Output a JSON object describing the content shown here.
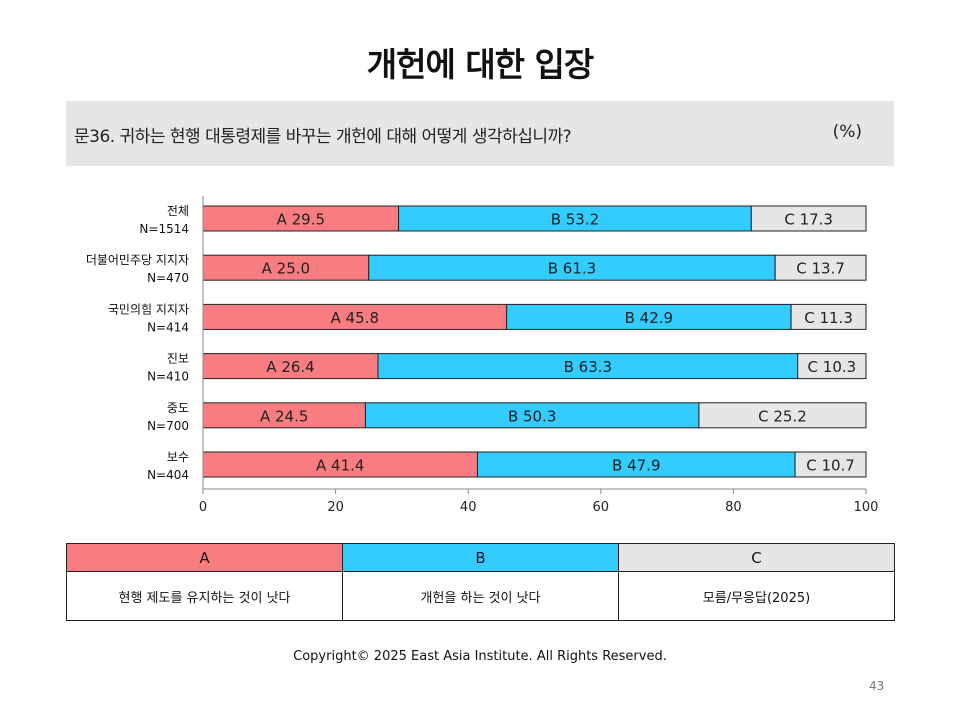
{
  "title": "개헌에 대한 입장",
  "question": {
    "text": "문36. 귀하는 현행 대통령제를 바꾸는 개헌에 대해 어떻게 생각하십니까?",
    "unit": "(%)"
  },
  "colors": {
    "A": "#f97d80",
    "B": "#33ccff",
    "C": "#e7e6e6",
    "border": "#222222"
  },
  "chart_data": {
    "type": "bar",
    "orientation": "horizontal",
    "stacked": true,
    "categories": [
      {
        "name": "전체",
        "n": "N=1514"
      },
      {
        "name": "더불어민주당  지지자",
        "n": "N=470"
      },
      {
        "name": "국민의힘  지지자",
        "n": "N=414"
      },
      {
        "name": "진보",
        "n": "N=410"
      },
      {
        "name": "중도",
        "n": "N=700"
      },
      {
        "name": "보수",
        "n": "N=404"
      }
    ],
    "series": [
      {
        "name": "A",
        "values": [
          29.5,
          25.0,
          45.8,
          26.4,
          24.5,
          41.4
        ]
      },
      {
        "name": "B",
        "values": [
          53.2,
          61.3,
          42.9,
          63.3,
          50.3,
          47.9
        ]
      },
      {
        "name": "C",
        "values": [
          17.3,
          13.7,
          11.3,
          10.3,
          25.2,
          10.7
        ]
      }
    ],
    "xlim": [
      0,
      100
    ],
    "xticks": [
      0,
      20,
      40,
      60,
      80,
      100
    ],
    "grid": false,
    "legend": "table-below"
  },
  "legend_table": {
    "headers": [
      "A",
      "B",
      "C"
    ],
    "descriptions": [
      "현행 제도를 유지하는 것이 낫다",
      "개헌을 하는 것이 낫다",
      "모름/무응답(2025)"
    ]
  },
  "footer": "Copyright© 2025 East Asia Institute. All Rights Reserved.",
  "page_number": "43"
}
